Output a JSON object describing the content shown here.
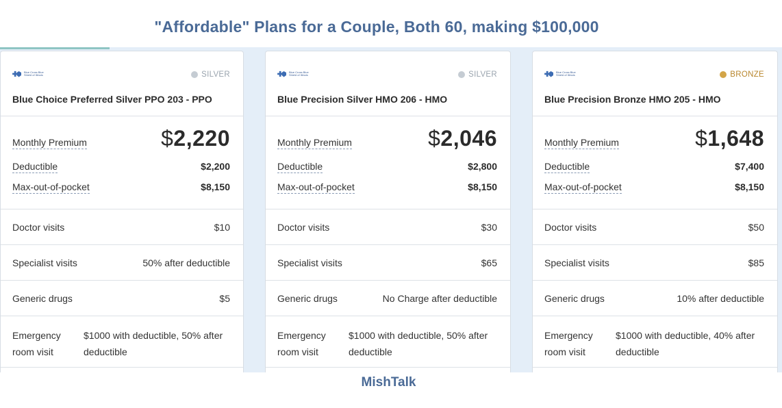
{
  "title": "\"Affordable\" Plans for a Couple, Both 60, making $100,000",
  "progress": {
    "fraction": 0.14
  },
  "footer": "MishTalk",
  "labels": {
    "monthly_premium": "Monthly Premium",
    "deductible": "Deductible",
    "max_oop": "Max-out-of-pocket",
    "doctor": "Doctor visits",
    "specialist": "Specialist visits",
    "generic": "Generic drugs",
    "er": "Emergency room visit"
  },
  "colors": {
    "silver": "#c5ccd3",
    "silver_text": "#9aa4ae",
    "bronze": "#d3a548",
    "bronze_text": "#b8862d",
    "accent": "#4a6a96"
  },
  "plans": [
    {
      "logo_text": "Blue Cross Blue Shield of Illinois",
      "tier": "SILVER",
      "name": "Blue Choice Preferred Silver PPO 203 - PPO",
      "currency": "$",
      "premium": "2,220",
      "deductible": "$2,200",
      "max_oop": "$8,150",
      "doctor": "$10",
      "specialist": "50% after deductible",
      "generic": "$5",
      "er": "$1000 with deductible, 50% after deductible"
    },
    {
      "logo_text": "Blue Cross Blue Shield of Illinois",
      "tier": "SILVER",
      "name": "Blue Precision Silver HMO 206 - HMO",
      "currency": "$",
      "premium": "2,046",
      "deductible": "$2,800",
      "max_oop": "$8,150",
      "doctor": "$30",
      "specialist": "$65",
      "generic": "No Charge after deductible",
      "er": "$1000 with deductible, 50% after deductible"
    },
    {
      "logo_text": "Blue Cross Blue Shield of Illinois",
      "tier": "BRONZE",
      "name": "Blue Precision Bronze HMO 205 - HMO",
      "currency": "$",
      "premium": "1,648",
      "deductible": "$7,400",
      "max_oop": "$8,150",
      "doctor": "$50",
      "specialist": "$85",
      "generic": "10% after deductible",
      "er": "$1000 with deductible, 40% after deductible"
    }
  ]
}
